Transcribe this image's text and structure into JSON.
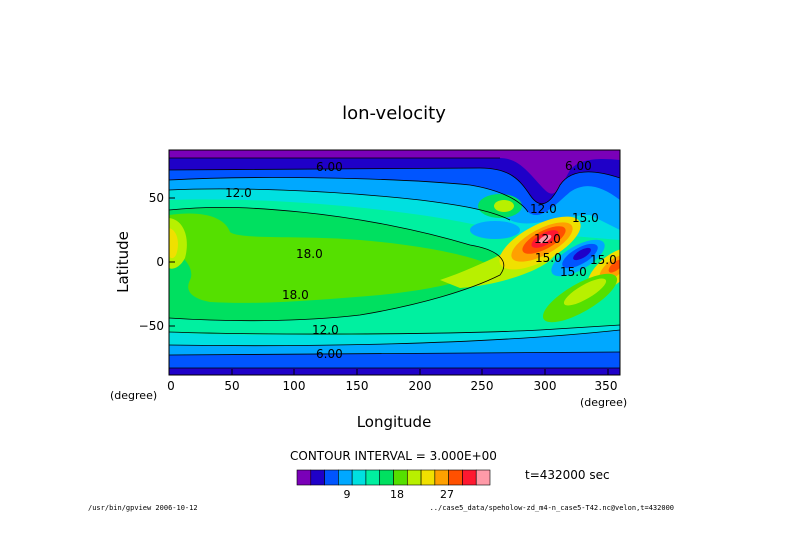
{
  "chart_data": {
    "type": "contour",
    "title": "lon-velocity",
    "xlabel": "Longitude",
    "ylabel": "Latitude",
    "x_unit": "(degree)",
    "y_unit": "(degree)",
    "xlim": [
      0,
      360
    ],
    "ylim": [
      -90,
      90
    ],
    "x_ticks": [
      "0",
      "50",
      "100",
      "150",
      "200",
      "250",
      "300",
      "350"
    ],
    "y_ticks": [
      "50",
      "0",
      "−50"
    ],
    "contour_labels": [
      "6.00",
      "6.00",
      "12.0",
      "12.0",
      "12.0",
      "18.0",
      "18.0",
      "15.0",
      "15.0",
      "15.0",
      "15.0",
      "12.0",
      "6.00"
    ],
    "contour_interval_text": "CONTOUR INTERVAL = 3.000E+00",
    "time_text": "t=432000 sec",
    "colorbar": {
      "ticks": [
        "9",
        "18",
        "27"
      ],
      "colors": [
        "#7a00b8",
        "#1f00c8",
        "#0055ff",
        "#00a8ff",
        "#00e0e0",
        "#00f0a0",
        "#00e060",
        "#55e000",
        "#b8f000",
        "#f0e000",
        "#ffa000",
        "#ff5000",
        "#ff1830",
        "#ff9aa8"
      ]
    },
    "footer_left": "/usr/bin/gpview  2006-10-12",
    "footer_right": "../case5_data/speholow-zd_m4-n_case5-T42.nc@velon,t=432000"
  }
}
